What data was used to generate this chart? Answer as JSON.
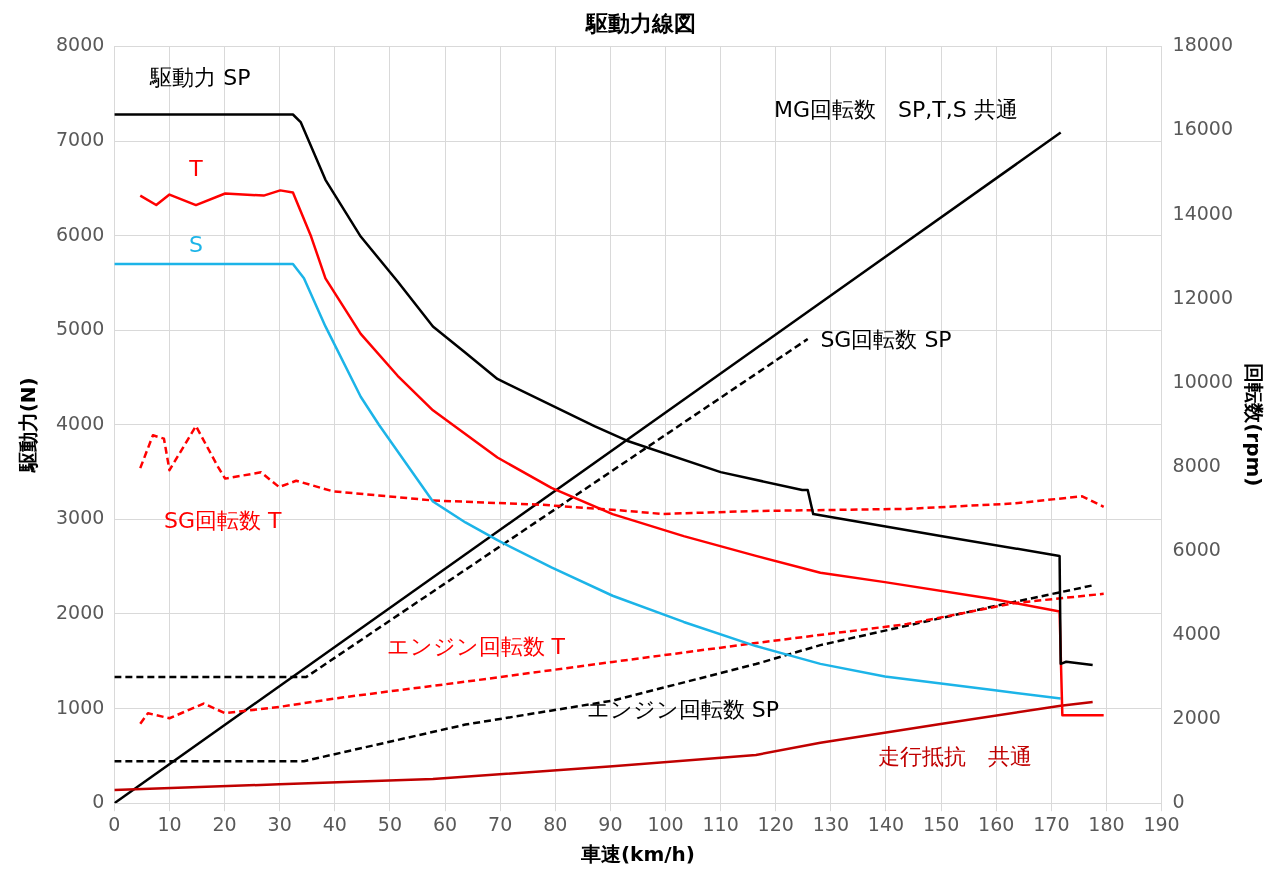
{
  "chart_data": {
    "type": "line",
    "title": "駆動力線図",
    "xlabel": "車速(km/h)",
    "ylabel": "駆動力(N)",
    "y2label": "回転数(rpm)",
    "xlim": [
      0,
      190
    ],
    "xticks": [
      0,
      10,
      20,
      30,
      40,
      50,
      60,
      70,
      80,
      90,
      100,
      110,
      120,
      130,
      140,
      150,
      160,
      170,
      180,
      190
    ],
    "ylim": [
      0,
      8000
    ],
    "yticks": [
      0,
      1000,
      2000,
      3000,
      4000,
      5000,
      6000,
      7000,
      8000
    ],
    "y2lim": [
      0,
      18000
    ],
    "y2ticks": [
      0,
      2000,
      4000,
      6000,
      8000,
      10000,
      12000,
      14000,
      16000,
      18000
    ],
    "grid": true,
    "legend": false,
    "marker": "none",
    "series": [
      {
        "name": "駆動力 SP",
        "color": "#000000",
        "line_style": "solid",
        "x": [
          0,
          32.4,
          33.8,
          38.3,
          44.7,
          51.4,
          57.8,
          63.7,
          69.5,
          87.1,
          93,
          110,
          124.8,
          125.8,
          126.8,
          150.2,
          171.5,
          171.7,
          172.7,
          177.5
        ],
        "values": [
          7280,
          7280,
          7200,
          6590,
          5990,
          5515,
          5040,
          4762,
          4485,
          3987,
          3832,
          3500,
          3311,
          3311,
          3056,
          2823,
          2614,
          1473,
          1495,
          1460
        ]
      },
      {
        "name": "T",
        "color": "#ff0000",
        "line_style": "solid",
        "x": [
          4.7,
          7.6,
          10,
          14.8,
          20.1,
          27.1,
          30.1,
          32.4,
          35.7,
          38.3,
          44.7,
          51.4,
          57.8,
          69.5,
          79.3,
          90.4,
          103.3,
          116.4,
          128.1,
          139.8,
          159.4,
          171.5,
          172,
          179.5
        ],
        "values": [
          6423,
          6323,
          6434,
          6323,
          6445,
          6423,
          6478,
          6456,
          5990,
          5548,
          4961,
          4518,
          4153,
          3654,
          3333,
          3056,
          2823,
          2614,
          2436,
          2337,
          2159,
          2027,
          930,
          930
        ]
      },
      {
        "name": "S",
        "color": "#1cb4e8",
        "line_style": "solid",
        "x": [
          0,
          32.4,
          34.4,
          38.3,
          44.7,
          48,
          57.8,
          63.7,
          69.5,
          79.3,
          90.4,
          103.3,
          116.4,
          128.1,
          139.8,
          159.4,
          171.7
        ],
        "values": [
          5700,
          5700,
          5548,
          5040,
          4297,
          4000,
          3189,
          2968,
          2780,
          2492,
          2193,
          1916,
          1661,
          1473,
          1340,
          1196,
          1107
        ]
      },
      {
        "name": "SG回転数 T",
        "color": "#ff0000",
        "line_style": "dashed",
        "axis": "y2",
        "x": [
          4.7,
          7,
          9,
          10,
          14.8,
          18.8,
          20.1,
          26.6,
          29.9,
          33,
          39.6,
          57.8,
          77.3,
          90.4,
          99.4,
          116.4,
          143.8,
          163.3,
          175.6,
          179.5
        ],
        "values": [
          7970,
          8750,
          8670,
          7920,
          8970,
          8000,
          7720,
          7870,
          7520,
          7670,
          7420,
          7200,
          7100,
          6980,
          6880,
          6950,
          7000,
          7130,
          7300,
          7050
        ]
      },
      {
        "name": "エンジン回転数 T",
        "color": "#ff0000",
        "line_style": "dashed",
        "axis": "y2",
        "x": [
          4.7,
          6.1,
          10,
          16.2,
          20.1,
          29.9,
          41.6,
          63.7,
          90.4,
          116.4,
          143.8,
          163.3,
          179.5
        ],
        "values": [
          1890,
          2140,
          2020,
          2370,
          2140,
          2290,
          2520,
          2890,
          3360,
          3810,
          4260,
          4760,
          4980
        ]
      },
      {
        "name": "エンジン回転数 SP",
        "color": "#000000",
        "line_style": "dashed",
        "axis": "y2",
        "x": [
          0,
          34.4,
          63.7,
          90.4,
          116.4,
          128.1,
          159.4,
          177.5
        ],
        "values": [
          1000,
          1000,
          1870,
          2440,
          3310,
          3760,
          4680,
          5180
        ]
      },
      {
        "name": "走行抵抗　共通",
        "color": "#c00000",
        "line_style": "solid",
        "x": [
          0,
          29.9,
          57.8,
          90.4,
          116.4,
          128.1,
          150.2,
          171.7,
          177.5
        ],
        "values": [
          140,
          200,
          255,
          390,
          510,
          640,
          840,
          1030,
          1070
        ]
      },
      {
        "name": "MG回転数　SP,T,S 共通",
        "color": "#000000",
        "line_style": "solid",
        "axis": "y2",
        "x": [
          0,
          171.7
        ],
        "values": [
          0,
          15950
        ]
      },
      {
        "name": "SG回転数 SP",
        "color": "#000000",
        "line_style": "dashed",
        "axis": "y2",
        "x": [
          0,
          34.8,
          125.8
        ],
        "values": [
          3000,
          3000,
          11040
        ]
      }
    ]
  }
}
